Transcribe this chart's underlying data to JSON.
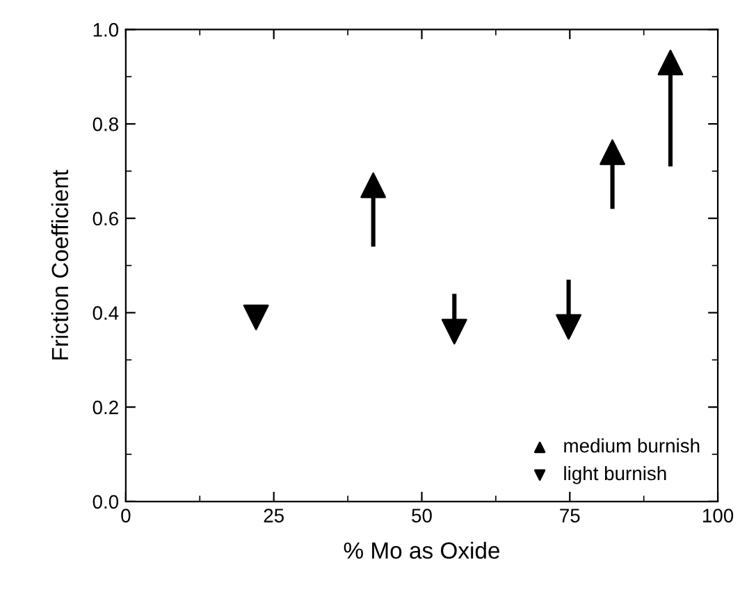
{
  "chart_data": {
    "type": "scatter",
    "xlabel": "% Mo as Oxide",
    "ylabel": "Friction Coefficient",
    "xlim": [
      0,
      100
    ],
    "xticks": [
      0,
      25,
      50,
      75,
      100
    ],
    "ylim": [
      0.0,
      1.0
    ],
    "yticks": [
      {
        "value": 0.0,
        "label": "0.0"
      },
      0.2,
      0.4,
      0.6,
      0.8,
      {
        "value": 1.0,
        "label": "1.0"
      }
    ],
    "grid": false,
    "legend": "bottom right",
    "marker": "triangle",
    "series": [
      {
        "name": "medium burnish",
        "color": "#000000",
        "x": [
          41.8,
          82.2,
          92.0
        ],
        "values": [
          0.67,
          0.74,
          0.93
        ],
        "errors": [
          [
            0.54,
            0.67
          ],
          [
            0.62,
            0.74
          ],
          [
            0.71,
            0.93
          ]
        ]
      },
      {
        "name": "light burnish",
        "color": "#000000",
        "x": [
          22.0,
          55.5,
          74.8
        ],
        "values": [
          0.39,
          0.36,
          0.37
        ],
        "errors": [
          null,
          [
            0.36,
            0.44
          ],
          [
            0.37,
            0.47
          ]
        ]
      }
    ]
  }
}
